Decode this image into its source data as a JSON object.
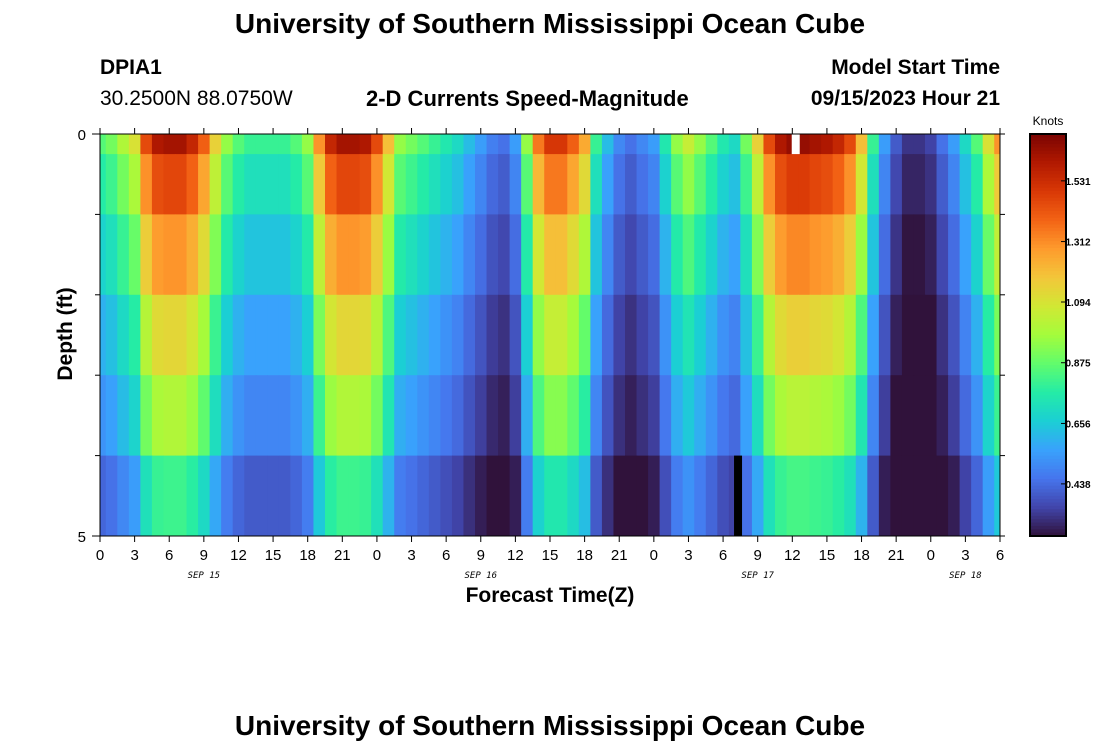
{
  "header": {
    "title": "University of Southern Mississippi Ocean Cube",
    "station_id": "DPIA1",
    "station_coords": "30.2500N  88.0750W",
    "plot_title": "2-D Currents Speed-Magnitude",
    "model_label": "Model Start Time",
    "model_time": "09/15/2023 Hour 21"
  },
  "footer": {
    "title": "University of Southern Mississippi Ocean Cube"
  },
  "chart_data": {
    "type": "heatmap",
    "title": "2-D Currents Speed-Magnitude",
    "xlabel": "Forecast Time(Z)",
    "ylabel": "Depth (ft)",
    "x_tick_labels": [
      "0",
      "3",
      "6",
      "9",
      "12",
      "15",
      "18",
      "21",
      "0",
      "3",
      "6",
      "9",
      "12",
      "15",
      "18",
      "21",
      "0",
      "3",
      "6",
      "9",
      "12",
      "15",
      "18",
      "21",
      "0",
      "3",
      "6"
    ],
    "date_labels": [
      {
        "label": "SEP 15",
        "hour": 9
      },
      {
        "label": "SEP 16",
        "hour": 33
      },
      {
        "label": "SEP 17",
        "hour": 57
      },
      {
        "label": "SEP 18",
        "hour": 75
      }
    ],
    "y_tick_labels": [
      "0",
      "5"
    ],
    "ylim": [
      0,
      5
    ],
    "xlim_hours": [
      0,
      78
    ],
    "depth_layers": [
      0,
      0.5,
      1.5,
      2.5,
      3.5,
      4.5
    ],
    "colorbar": {
      "label": "Knots",
      "ticks": [
        "1.531",
        "1.312",
        "1.094",
        "0.875",
        "0.656",
        "0.438"
      ],
      "range": [
        0.25,
        1.7
      ],
      "colors": [
        "#30123b",
        "#4145ab",
        "#4675ed",
        "#39a2fc",
        "#1bcfd4",
        "#24eca6",
        "#61fc6c",
        "#a4fc3b",
        "#d1e834",
        "#f3c63a",
        "#fe9b2d",
        "#f36315",
        "#d93806",
        "#b11901",
        "#7a0402"
      ]
    },
    "surface_speed_knots": [
      0.85,
      0.9,
      1.0,
      1.1,
      1.45,
      1.6,
      1.62,
      1.62,
      1.55,
      1.4,
      1.15,
      0.95,
      0.85,
      0.8,
      0.8,
      0.8,
      0.8,
      0.85,
      0.95,
      1.3,
      1.55,
      1.62,
      1.62,
      1.6,
      1.45,
      1.2,
      0.95,
      0.9,
      0.85,
      0.8,
      0.75,
      0.7,
      0.62,
      0.55,
      0.48,
      0.45,
      0.55,
      0.95,
      1.35,
      1.5,
      1.5,
      1.4,
      1.25,
      0.8,
      0.62,
      0.5,
      0.45,
      0.5,
      0.55,
      0.75,
      0.95,
      1.05,
      0.95,
      0.85,
      0.75,
      0.7,
      0.9,
      1.15,
      1.45,
      1.6,
      1.65,
      1.65,
      1.62,
      1.6,
      1.55,
      1.45,
      1.2,
      0.8,
      0.55,
      0.4,
      0.32,
      0.32,
      0.35,
      0.45,
      0.55,
      0.7,
      0.85,
      1.1,
      1.3
    ],
    "depth_factors": [
      1.0,
      0.9,
      0.8,
      0.7,
      0.62,
      0.5
    ],
    "markers": [
      {
        "hour": 60.3,
        "depth_layer": 0,
        "color": "#ffffff"
      },
      {
        "hour": 55.3,
        "depth_layer": 5,
        "color": "#000000"
      }
    ]
  }
}
